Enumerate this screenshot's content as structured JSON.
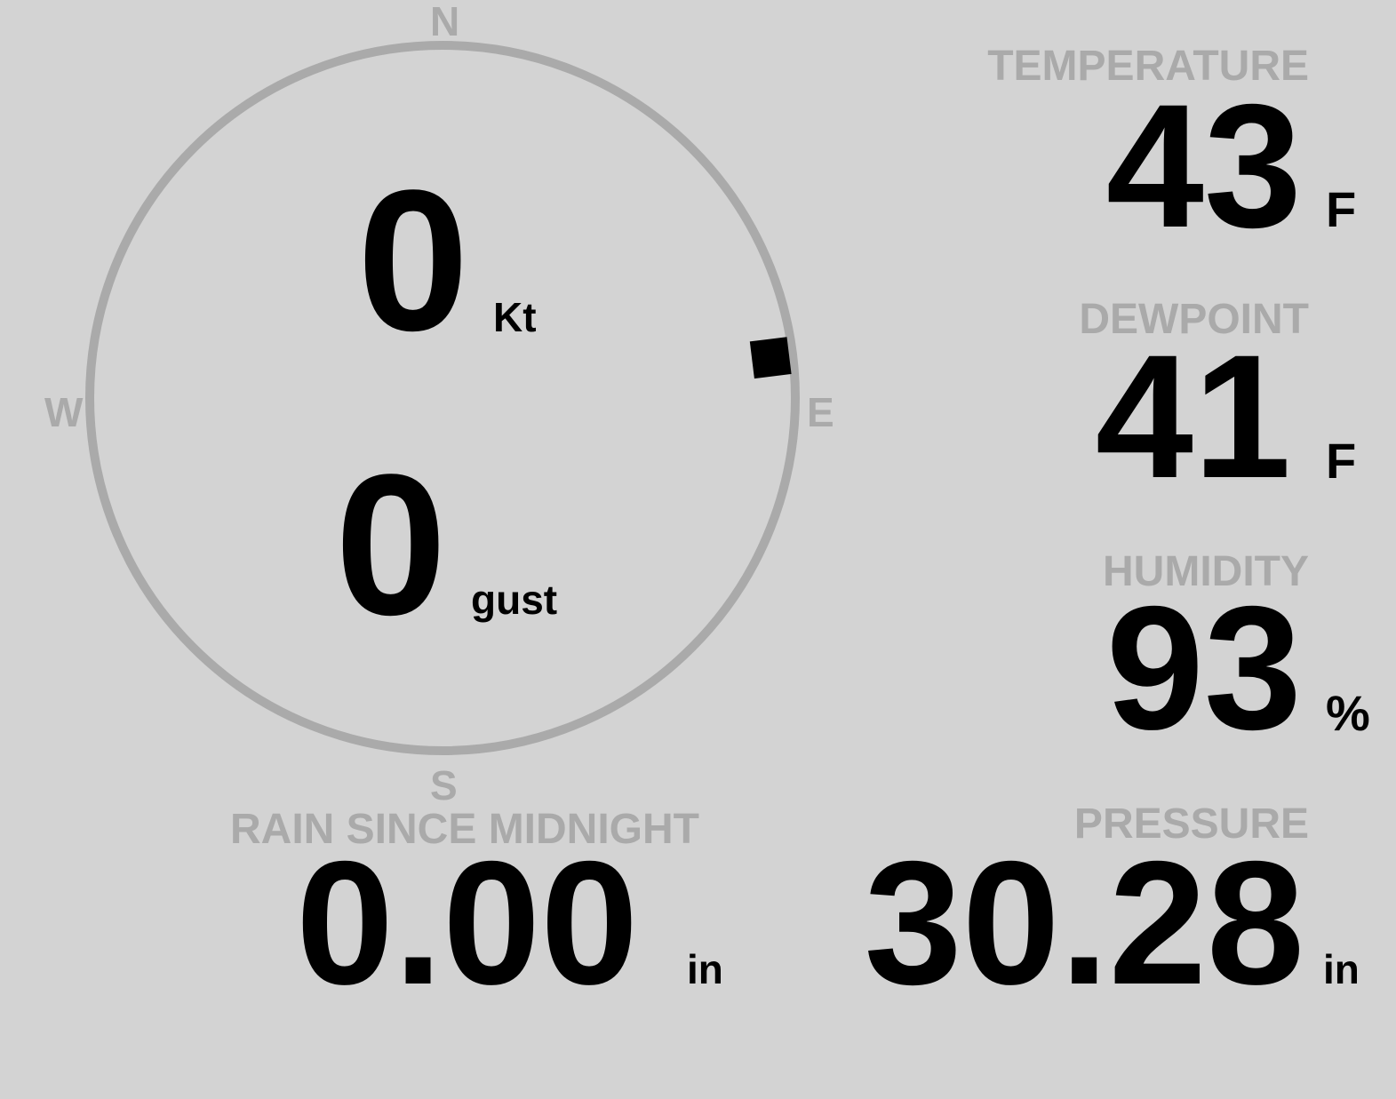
{
  "wind": {
    "speed": "0",
    "speed_unit": "Kt",
    "gust": "0",
    "gust_label": "gust",
    "direction_degrees": 83,
    "compass": {
      "n": "N",
      "e": "E",
      "s": "S",
      "w": "W"
    }
  },
  "temperature": {
    "label": "TEMPERATURE",
    "value": "43",
    "unit": "F"
  },
  "dewpoint": {
    "label": "DEWPOINT",
    "value": "41",
    "unit": "F"
  },
  "humidity": {
    "label": "HUMIDITY",
    "value": "93",
    "unit": "%"
  },
  "pressure": {
    "label": "PRESSURE",
    "value": "30.28",
    "unit": "in"
  },
  "rain": {
    "label": "RAIN SINCE MIDNIGHT",
    "value": "0.00",
    "unit": "in"
  },
  "colors": {
    "background": "#d3d3d3",
    "label": "#aaaaaa",
    "value": "#000000",
    "ring": "#aaaaaa"
  }
}
